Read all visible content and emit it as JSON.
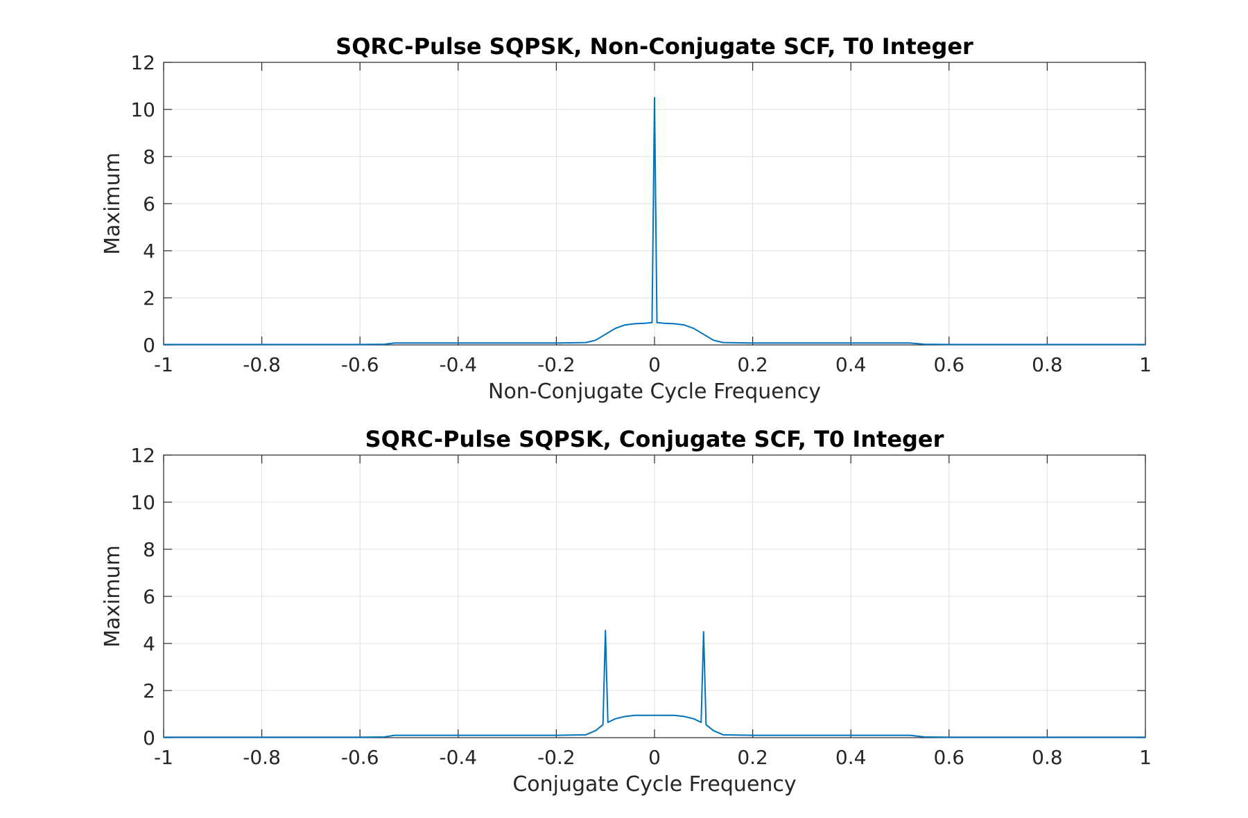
{
  "chart_data": [
    {
      "type": "line",
      "title": "SQRC-Pulse SQPSK, Non-Conjugate SCF, T0 Integer",
      "xlabel": "Non-Conjugate Cycle Frequency",
      "ylabel": "Maximum",
      "xlim": [
        -1,
        1
      ],
      "ylim": [
        0,
        12
      ],
      "xticks": [
        "-1",
        "-0.8",
        "-0.6",
        "-0.4",
        "-0.2",
        "0",
        "0.2",
        "0.4",
        "0.6",
        "0.8",
        "1"
      ],
      "yticks": [
        "0",
        "2",
        "4",
        "6",
        "8",
        "10",
        "12"
      ],
      "grid": true,
      "color": "#0072BD",
      "series": [
        {
          "x": [
            -1.0,
            -0.6,
            -0.55,
            -0.53,
            -0.4,
            -0.2,
            -0.14,
            -0.12,
            -0.1,
            -0.08,
            -0.06,
            -0.04,
            -0.02,
            -0.005,
            0.0,
            0.005,
            0.02,
            0.04,
            0.06,
            0.08,
            0.1,
            0.12,
            0.14,
            0.2,
            0.4,
            0.52,
            0.55,
            0.6,
            1.0
          ],
          "y": [
            0.02,
            0.02,
            0.03,
            0.08,
            0.08,
            0.08,
            0.1,
            0.2,
            0.45,
            0.7,
            0.85,
            0.9,
            0.92,
            0.95,
            10.5,
            0.95,
            0.92,
            0.9,
            0.85,
            0.7,
            0.45,
            0.2,
            0.1,
            0.08,
            0.08,
            0.08,
            0.03,
            0.02,
            0.02
          ]
        }
      ]
    },
    {
      "type": "line",
      "title": "SQRC-Pulse SQPSK, Conjugate SCF, T0 Integer",
      "xlabel": "Conjugate Cycle Frequency",
      "ylabel": "Maximum",
      "xlim": [
        -1,
        1
      ],
      "ylim": [
        0,
        12
      ],
      "xticks": [
        "-1",
        "-0.8",
        "-0.6",
        "-0.4",
        "-0.2",
        "0",
        "0.2",
        "0.4",
        "0.6",
        "0.8",
        "1"
      ],
      "yticks": [
        "0",
        "2",
        "4",
        "6",
        "8",
        "10",
        "12"
      ],
      "grid": true,
      "color": "#0072BD",
      "series": [
        {
          "x": [
            -1.0,
            -0.6,
            -0.55,
            -0.53,
            -0.4,
            -0.2,
            -0.14,
            -0.12,
            -0.105,
            -0.1,
            -0.095,
            -0.08,
            -0.06,
            -0.04,
            -0.02,
            0.0,
            0.02,
            0.04,
            0.06,
            0.08,
            0.095,
            0.1,
            0.105,
            0.12,
            0.14,
            0.2,
            0.4,
            0.52,
            0.55,
            0.6,
            1.0
          ],
          "y": [
            0.02,
            0.02,
            0.03,
            0.1,
            0.1,
            0.1,
            0.12,
            0.3,
            0.55,
            4.55,
            0.65,
            0.8,
            0.9,
            0.95,
            0.95,
            0.95,
            0.95,
            0.95,
            0.9,
            0.8,
            0.65,
            4.5,
            0.55,
            0.3,
            0.12,
            0.1,
            0.1,
            0.1,
            0.03,
            0.02,
            0.02
          ]
        }
      ]
    }
  ]
}
